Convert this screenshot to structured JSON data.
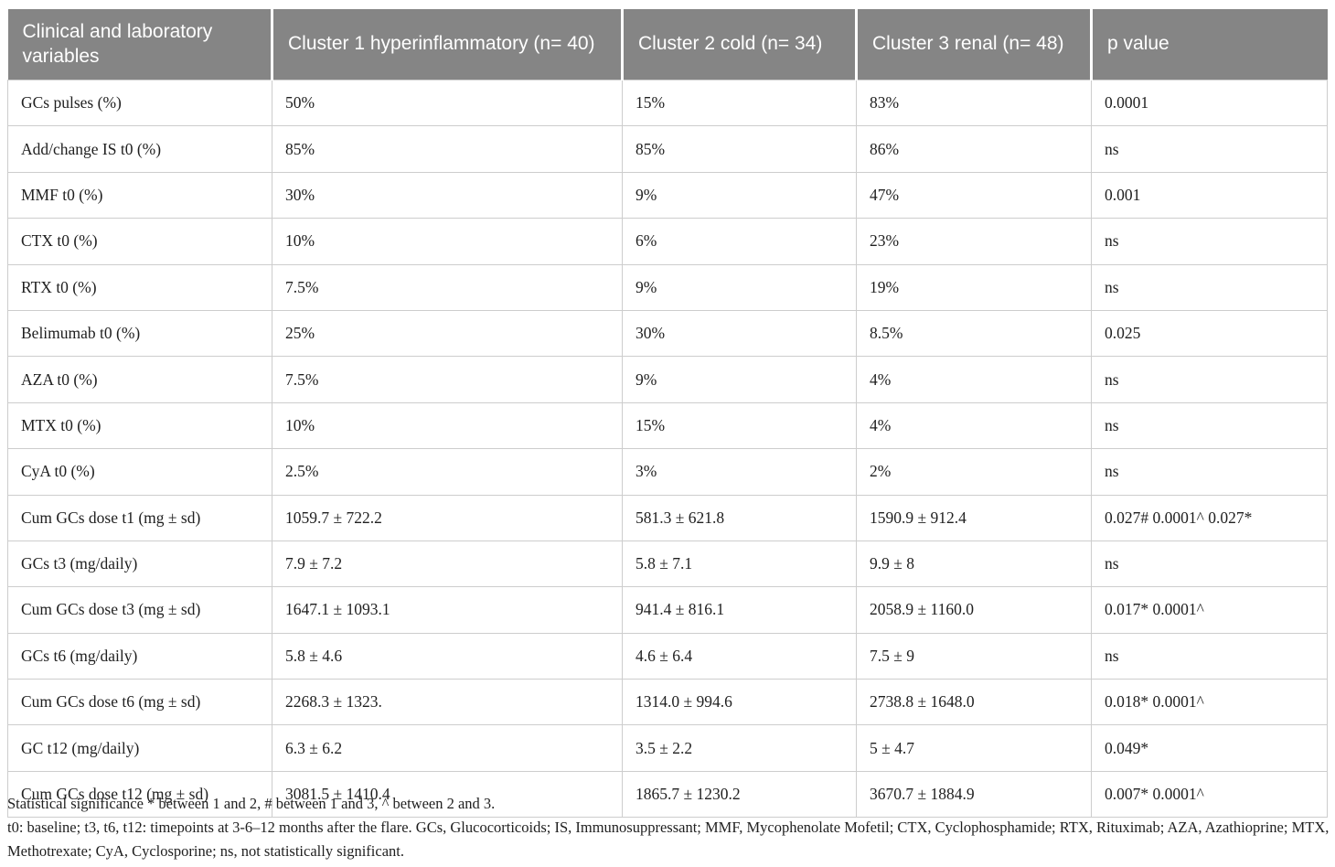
{
  "table": {
    "columns": [
      {
        "label": "Clinical and laboratory variables"
      },
      {
        "label": "Cluster 1 hyperinflammatory (n= 40)"
      },
      {
        "label": "Cluster 2 cold (n= 34)"
      },
      {
        "label": "Cluster 3 renal (n= 48)"
      },
      {
        "label": "p value"
      }
    ],
    "rows": [
      [
        "GCs pulses (%)",
        "50%",
        "15%",
        "83%",
        "0.0001"
      ],
      [
        "Add/change IS t0 (%)",
        "85%",
        "85%",
        "86%",
        "ns"
      ],
      [
        "MMF t0 (%)",
        "30%",
        "9%",
        "47%",
        "0.001"
      ],
      [
        "CTX t0 (%)",
        "10%",
        "6%",
        "23%",
        "ns"
      ],
      [
        "RTX t0 (%)",
        "7.5%",
        "9%",
        "19%",
        "ns"
      ],
      [
        "Belimumab t0 (%)",
        "25%",
        "30%",
        "8.5%",
        "0.025"
      ],
      [
        "AZA t0 (%)",
        "7.5%",
        "9%",
        "4%",
        "ns"
      ],
      [
        "MTX t0 (%)",
        "10%",
        "15%",
        "4%",
        "ns"
      ],
      [
        "CyA t0 (%)",
        "2.5%",
        "3%",
        "2%",
        "ns"
      ],
      [
        "Cum GCs dose t1 (mg ± sd)",
        "1059.7 ± 722.2",
        "581.3 ± 621.8",
        "1590.9 ± 912.4",
        "0.027# 0.0001^ 0.027*"
      ],
      [
        "GCs t3 (mg/daily)",
        "7.9 ± 7.2",
        "5.8 ± 7.1",
        "9.9 ± 8",
        "ns"
      ],
      [
        "Cum GCs dose t3 (mg ± sd)",
        "1647.1 ± 1093.1",
        "941.4 ± 816.1",
        "2058.9 ± 1160.0",
        "0.017* 0.0001^"
      ],
      [
        "GCs t6 (mg/daily)",
        "5.8 ± 4.6",
        "4.6 ± 6.4",
        "7.5 ± 9",
        "ns"
      ],
      [
        "Cum GCs dose t6 (mg ± sd)",
        "2268.3 ± 1323.",
        "1314.0 ± 994.6",
        "2738.8 ± 1648.0",
        "0.018* 0.0001^"
      ],
      [
        "GC t12 (mg/daily)",
        "6.3 ± 6.2",
        "3.5 ± 2.2",
        "5 ± 4.7",
        "0.049*"
      ],
      [
        "Cum GCs dose t12 (mg ± sd)",
        "3081.5 ± 1410.4",
        "1865.7 ± 1230.2",
        "3670.7 ± 1884.9",
        "0.007* 0.0001^"
      ]
    ]
  },
  "footnotes": {
    "significance": "Statistical significance * between 1 and 2, # between 1 and 3, ^ between 2 and 3.",
    "abbreviations": "t0: baseline; t3, t6, t12: timepoints at 3-6–12 months after the flare. GCs, Glucocorticoids; IS, Immunosuppressant; MMF, Mycophenolate Mofetil; CTX, Cyclophosphamide; RTX, Rituximab; AZA, Azathioprine; MTX, Methotrexate; CyA, Cyclosporine; ns, not statistically significant."
  },
  "colors": {
    "header_bg": "#858585",
    "header_text": "#ffffff",
    "body_text": "#1f1f1f",
    "border": "#cdcdcd"
  }
}
